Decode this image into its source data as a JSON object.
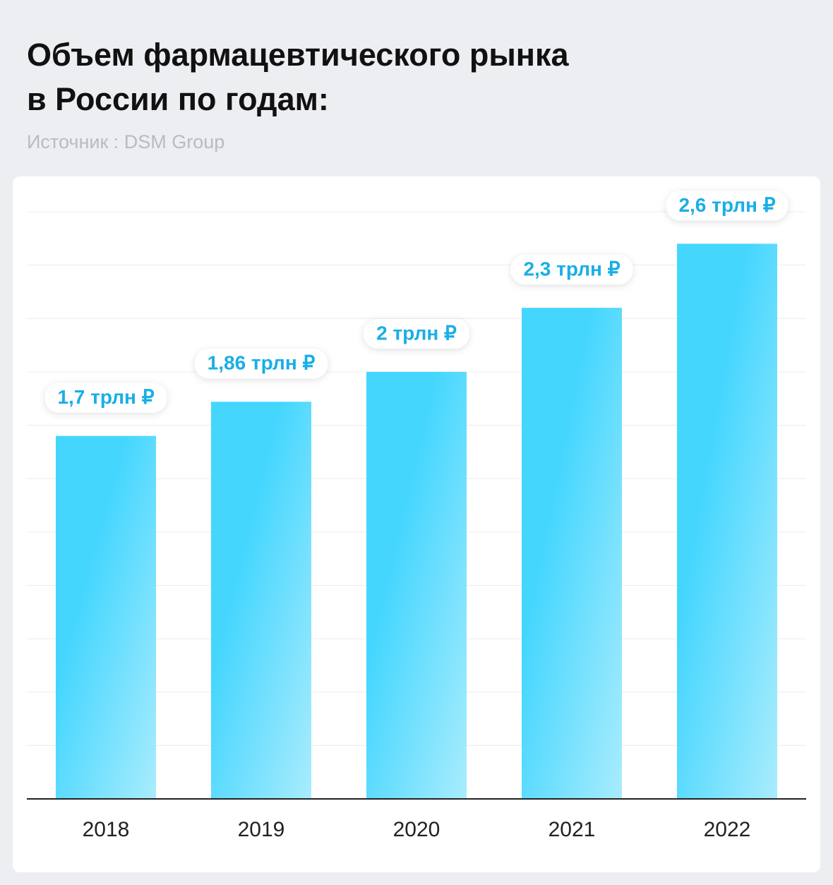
{
  "chart_data": {
    "type": "bar",
    "title": [
      "Объем фармацевтического рынка",
      "в России по годам:"
    ],
    "subtitle": "Источник : DSM Group",
    "categories": [
      "2018",
      "2019",
      "2020",
      "2021",
      "2022"
    ],
    "values": [
      1.7,
      1.86,
      2,
      2.3,
      2.6
    ],
    "value_labels": [
      "1,7 трлн ₽",
      "1,86 трлн ₽",
      "2 трлн ₽",
      "2,3 трлн ₽",
      "2,6 трлн ₽"
    ],
    "color": "#45d6fe",
    "label_color": "#1aaee6",
    "ylim": [
      0,
      2.75
    ],
    "yticks": [
      0,
      0.25,
      0.5,
      0.75,
      1,
      1.25,
      1.5,
      1.75,
      2,
      2.25,
      2.5,
      2.75
    ],
    "grid": true
  }
}
